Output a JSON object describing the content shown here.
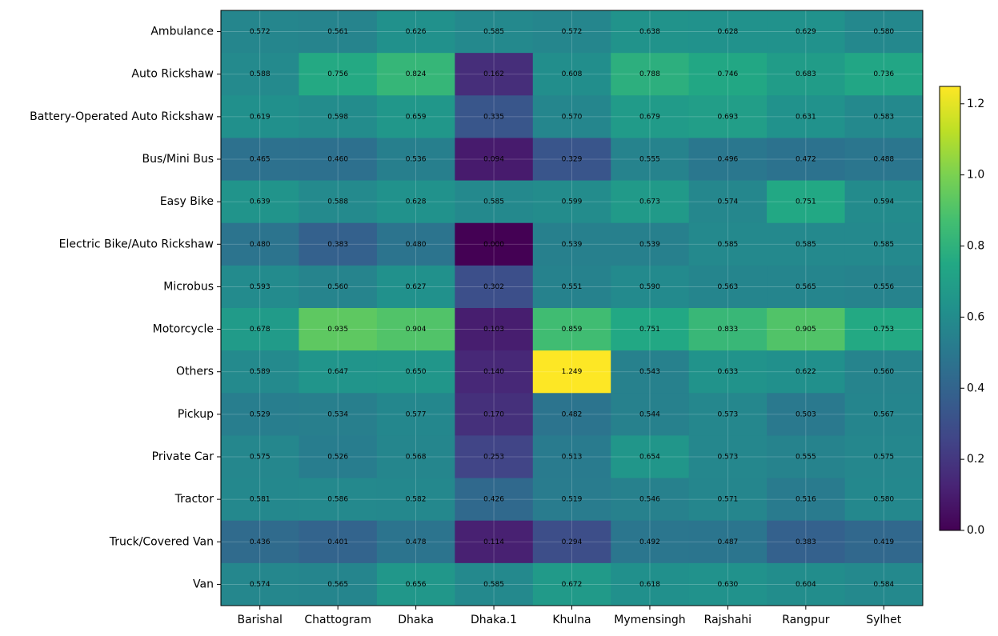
{
  "chart_data": {
    "type": "heatmap",
    "x": [
      "Barishal",
      "Chattogram",
      "Dhaka",
      "Dhaka.1",
      "Khulna",
      "Mymensingh",
      "Rajshahi",
      "Rangpur",
      "Sylhet"
    ],
    "y": [
      "Ambulance",
      "Auto Rickshaw",
      "Battery-Operated Auto Rickshaw",
      "Bus/Mini Bus",
      "Easy Bike",
      "Electric Bike/Auto Rickshaw",
      "Microbus",
      "Motorcycle",
      "Others",
      "Pickup",
      "Private Car",
      "Tractor",
      "Truck/Covered Van",
      "Van"
    ],
    "values": [
      [
        0.572,
        0.561,
        0.626,
        0.585,
        0.572,
        0.638,
        0.628,
        0.629,
        0.58
      ],
      [
        0.588,
        0.756,
        0.824,
        0.162,
        0.608,
        0.788,
        0.746,
        0.683,
        0.736
      ],
      [
        0.619,
        0.598,
        0.659,
        0.335,
        0.57,
        0.679,
        0.693,
        0.631,
        0.583
      ],
      [
        0.465,
        0.46,
        0.536,
        0.094,
        0.329,
        0.555,
        0.496,
        0.472,
        0.488
      ],
      [
        0.639,
        0.588,
        0.628,
        0.585,
        0.599,
        0.673,
        0.574,
        0.751,
        0.594
      ],
      [
        0.48,
        0.383,
        0.48,
        0.0,
        0.539,
        0.539,
        0.585,
        0.585,
        0.585
      ],
      [
        0.593,
        0.56,
        0.627,
        0.302,
        0.551,
        0.59,
        0.563,
        0.565,
        0.556
      ],
      [
        0.678,
        0.935,
        0.904,
        0.103,
        0.859,
        0.751,
        0.833,
        0.905,
        0.753
      ],
      [
        0.589,
        0.647,
        0.65,
        0.14,
        1.249,
        0.543,
        0.633,
        0.622,
        0.56
      ],
      [
        0.529,
        0.534,
        0.577,
        0.17,
        0.482,
        0.544,
        0.573,
        0.503,
        0.567
      ],
      [
        0.575,
        0.526,
        0.568,
        0.253,
        0.513,
        0.654,
        0.573,
        0.555,
        0.575
      ],
      [
        0.581,
        0.586,
        0.582,
        0.426,
        0.519,
        0.546,
        0.571,
        0.516,
        0.58
      ],
      [
        0.436,
        0.401,
        0.478,
        0.114,
        0.294,
        0.492,
        0.487,
        0.383,
        0.419
      ],
      [
        0.574,
        0.565,
        0.656,
        0.585,
        0.672,
        0.618,
        0.63,
        0.604,
        0.584
      ]
    ],
    "value_labels": [
      [
        "0.572",
        "0.561",
        "0.626",
        "0.585",
        "0.572",
        "0.638",
        "0.628",
        "0.629",
        "0.580"
      ],
      [
        "0.588",
        "0.756",
        "0.824",
        "0.162",
        "0.608",
        "0.788",
        "0.746",
        "0.683",
        "0.736"
      ],
      [
        "0.619",
        "0.598",
        "0.659",
        "0.335",
        "0.570",
        "0.679",
        "0.693",
        "0.631",
        "0.583"
      ],
      [
        "0.465",
        "0.460",
        "0.536",
        "0.094",
        "0.329",
        "0.555",
        "0.496",
        "0.472",
        "0.488"
      ],
      [
        "0.639",
        "0.588",
        "0.628",
        "0.585",
        "0.599",
        "0.673",
        "0.574",
        "0.751",
        "0.594"
      ],
      [
        "0.480",
        "0.383",
        "0.480",
        "0.000",
        "0.539",
        "0.539",
        "0.585",
        "0.585",
        "0.585"
      ],
      [
        "0.593",
        "0.560",
        "0.627",
        "0.302",
        "0.551",
        "0.590",
        "0.563",
        "0.565",
        "0.556"
      ],
      [
        "0.678",
        "0.935",
        "0.904",
        "0.103",
        "0.859",
        "0.751",
        "0.833",
        "0.905",
        "0.753"
      ],
      [
        "0.589",
        "0.647",
        "0.650",
        "0.140",
        "1.249",
        "0.543",
        "0.633",
        "0.622",
        "0.560"
      ],
      [
        "0.529",
        "0.534",
        "0.577",
        "0.170",
        "0.482",
        "0.544",
        "0.573",
        "0.503",
        "0.567"
      ],
      [
        "0.575",
        "0.526",
        "0.568",
        "0.253",
        "0.513",
        "0.654",
        "0.573",
        "0.555",
        "0.575"
      ],
      [
        "0.581",
        "0.586",
        "0.582",
        "0.426",
        "0.519",
        "0.546",
        "0.571",
        "0.516",
        "0.580"
      ],
      [
        "0.436",
        "0.401",
        "0.478",
        "0.114",
        "0.294",
        "0.492",
        "0.487",
        "0.383",
        "0.419"
      ],
      [
        "0.574",
        "0.565",
        "0.656",
        "0.585",
        "0.672",
        "0.618",
        "0.630",
        "0.604",
        "0.584"
      ]
    ],
    "colormap": "viridis",
    "clim": [
      0,
      1.249
    ],
    "cticks": [
      {
        "value": 0,
        "label": "0.0"
      },
      0.2,
      0.4,
      0.6,
      0.8,
      {
        "value": 1,
        "label": "1.0"
      },
      1.2
    ],
    "grid": true
  }
}
